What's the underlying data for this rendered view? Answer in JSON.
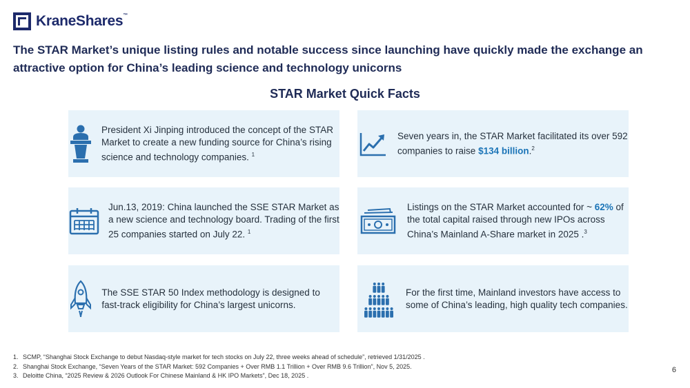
{
  "brand": {
    "name": "KraneShares",
    "tm": "™",
    "color": "#1d2a6b"
  },
  "headline": "The STAR Market’s unique listing rules and notable success since launching have quickly made the exchange an attractive option for China’s leading science and technology unicorns",
  "section_title": "STAR Market Quick Facts",
  "facts": [
    {
      "icon": "podium-speaker-icon",
      "text": "President Xi Jinping introduced the concept of the STAR Market to create a new funding source for China’s rising science and technology companies.",
      "sup": "1"
    },
    {
      "icon": "trend-up-chart-icon",
      "text_before": "Seven years in, the STAR Market facilitated its over 592 companies to raise ",
      "highlight": "$134 billion",
      "text_after": ".",
      "sup": "2"
    },
    {
      "icon": "calendar-icon",
      "text": "Jun.13, 2019: China launched the SSE STAR Market as a new science and technology board. Trading of the first 25 companies started on July 22.",
      "sup": "1"
    },
    {
      "icon": "money-bills-icon",
      "text_before": "Listings on the STAR Market accounted for ~ ",
      "highlight": "62%",
      "text_after": " of the total capital raised through new IPOs across China’s Mainland A-Share market in 2025 .",
      "sup": "3"
    },
    {
      "icon": "rocket-icon",
      "text": "The SSE STAR 50 Index methodology is designed to fast-track eligibility for China’s largest unicorns."
    },
    {
      "icon": "people-group-icon",
      "text": "For the first time, Mainland investors have access to some of China’s leading, high quality tech companies."
    }
  ],
  "footnotes": [
    {
      "num": "1.",
      "text": "SCMP, “Shanghai Stock Exchange to debut Nasdaq-style market for tech stocks on July 22, three weeks ahead of schedule”, retrieved 1/31/2025 ."
    },
    {
      "num": "2.",
      "text": "Shanghai Stock Exchange, “Seven Years of the STAR Market: 592 Companies + Over RMB 1.1 Trillion + Over RMB 9.6 Trillion”, Nov 5, 2025."
    },
    {
      "num": "3.",
      "text": "Deloitte China, “2025 Review & 2026 Outlook For Chinese Mainland & HK IPO Markets”, Dec 18, 2025 ."
    }
  ],
  "page_number": "6",
  "colors": {
    "icon_blue": "#2b6fae",
    "card_bg": "#e8f3fa",
    "highlight": "#1b74b7",
    "headline": "#1f2b56"
  }
}
